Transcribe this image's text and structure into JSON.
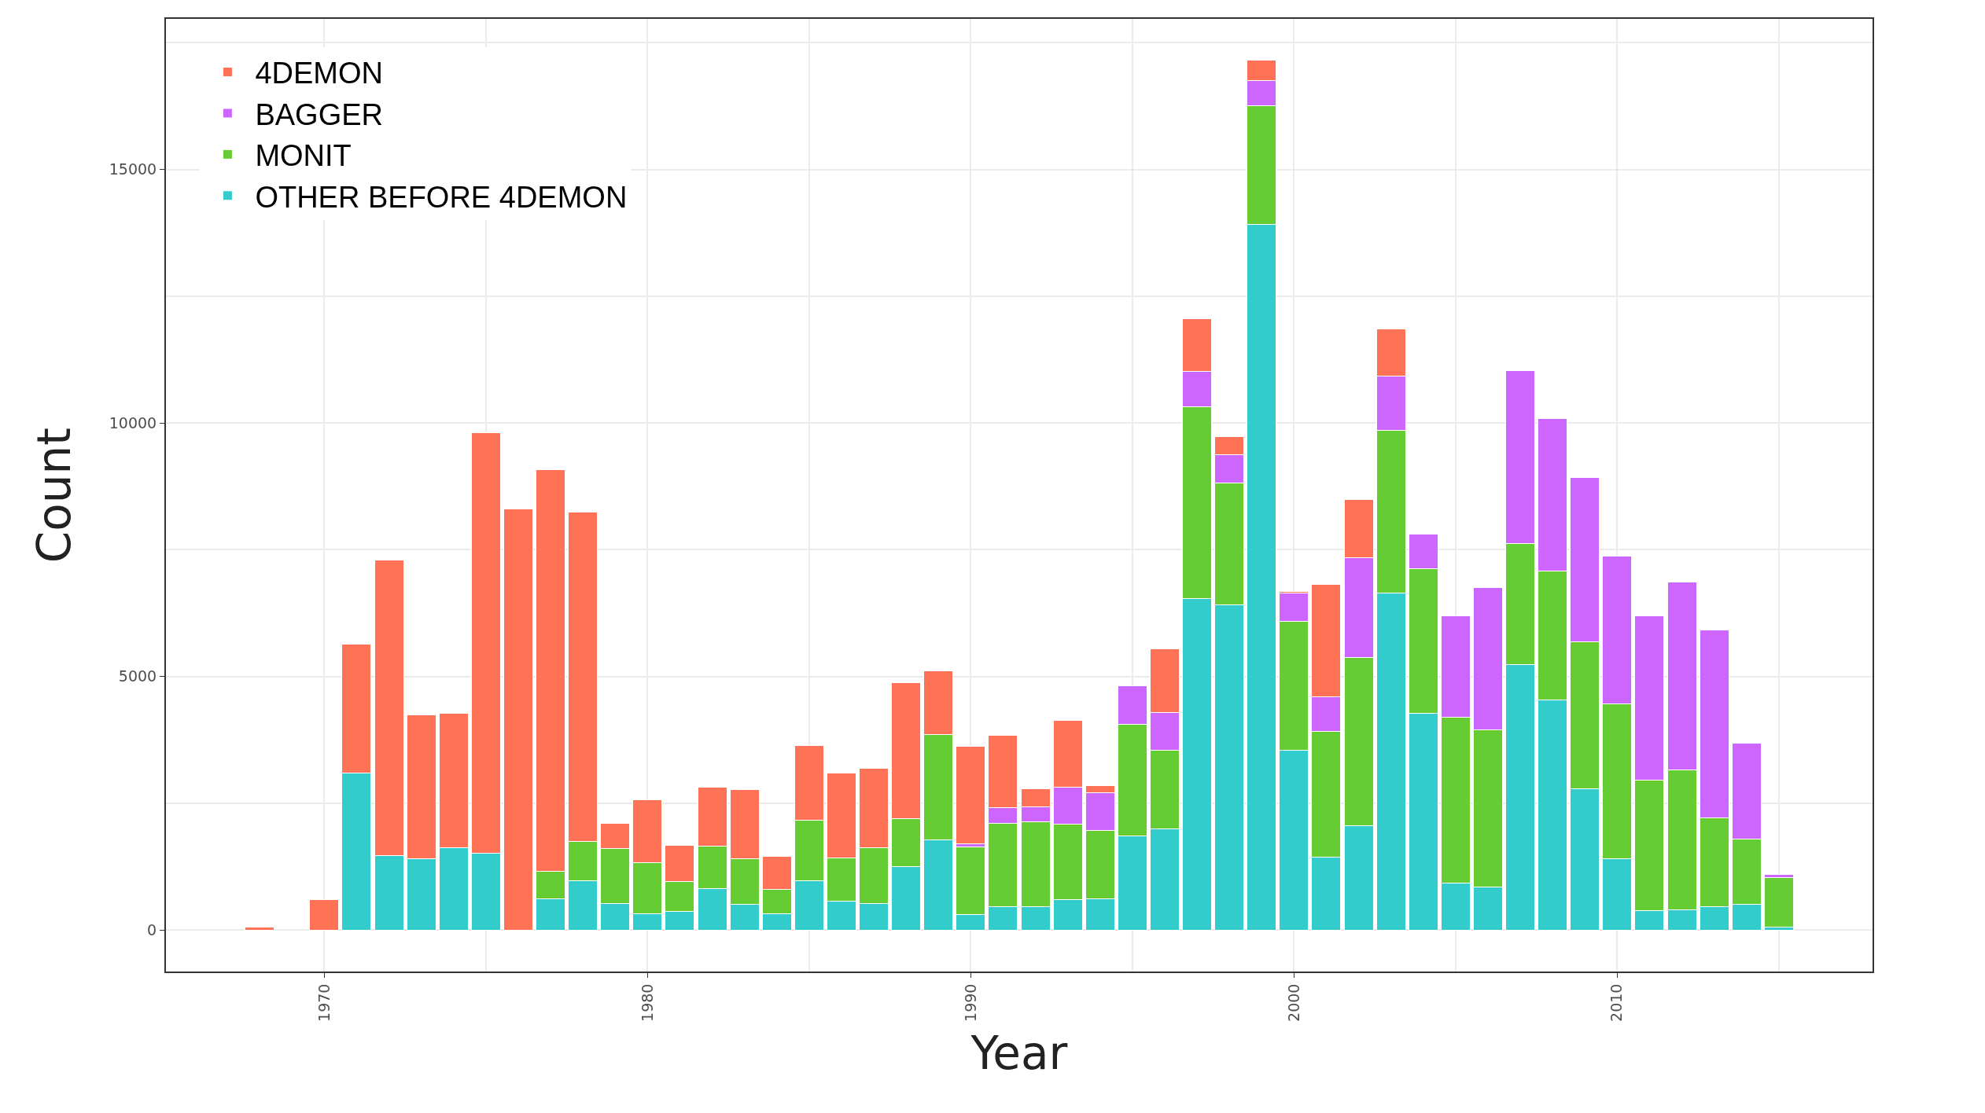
{
  "chart_data": {
    "type": "bar",
    "stacked": true,
    "xlabel": "Year",
    "ylabel": "Count",
    "x": [
      1968,
      1969,
      1970,
      1971,
      1972,
      1973,
      1974,
      1975,
      1976,
      1977,
      1978,
      1979,
      1980,
      1981,
      1982,
      1983,
      1984,
      1985,
      1986,
      1987,
      1988,
      1989,
      1990,
      1991,
      1992,
      1993,
      1994,
      1995,
      1996,
      1997,
      1998,
      1999,
      2000,
      2001,
      2002,
      2003,
      2004,
      2005,
      2006,
      2007,
      2008,
      2009,
      2010,
      2011,
      2012,
      2013,
      2014,
      2015
    ],
    "series": [
      {
        "name": "OTHER BEFORE 4DEMON",
        "color": "#33cccc",
        "values": [
          null,
          null,
          null,
          3090,
          1470,
          1400,
          1620,
          1520,
          null,
          620,
          970,
          520,
          320,
          370,
          820,
          500,
          320,
          970,
          570,
          520,
          1250,
          1780,
          300,
          460,
          460,
          600,
          620,
          1860,
          2000,
          6540,
          6420,
          13910,
          3550,
          1430,
          2050,
          6640,
          4270,
          920,
          840,
          5240,
          4540,
          2790,
          1410,
          380,
          400,
          455,
          505,
          60
        ]
      },
      {
        "name": "MONIT",
        "color": "#66cc33",
        "values": [
          null,
          null,
          null,
          null,
          null,
          null,
          null,
          null,
          null,
          530,
          780,
          1080,
          1000,
          580,
          830,
          900,
          480,
          1200,
          850,
          1100,
          940,
          2070,
          1330,
          1650,
          1670,
          1480,
          1350,
          2190,
          1540,
          3780,
          2390,
          2350,
          2540,
          2490,
          3330,
          3220,
          2860,
          3270,
          3110,
          2380,
          2540,
          2890,
          3050,
          2570,
          2760,
          1755,
          1280,
          970
        ]
      },
      {
        "name": "BAGGER",
        "color": "#cc66ff",
        "values": [
          null,
          null,
          null,
          null,
          null,
          null,
          null,
          null,
          null,
          null,
          null,
          null,
          null,
          null,
          null,
          null,
          null,
          null,
          null,
          null,
          null,
          null,
          75,
          300,
          300,
          730,
          730,
          760,
          750,
          690,
          570,
          490,
          560,
          680,
          1970,
          1060,
          670,
          2000,
          2810,
          3410,
          3000,
          3240,
          2920,
          3240,
          3700,
          3710,
          1895,
          60
        ]
      },
      {
        "name": "4DEMON",
        "color": "#ff7256",
        "values": [
          50,
          null,
          600,
          2550,
          5820,
          2840,
          2650,
          8290,
          8310,
          7930,
          6490,
          500,
          1250,
          720,
          1170,
          1370,
          650,
          1470,
          1670,
          1570,
          2680,
          1260,
          1920,
          1430,
          360,
          1320,
          140,
          null,
          1250,
          1050,
          350,
          410,
          30,
          2210,
          1140,
          940,
          null,
          null,
          null,
          null,
          null,
          null,
          null,
          null,
          null,
          null,
          null,
          null
        ]
      }
    ],
    "xlim": [
      1965.1,
      2017.9
    ],
    "xticks": [
      1970,
      1980,
      1990,
      2000,
      2010
    ],
    "ylim": [
      -820,
      17970
    ],
    "yticks": [
      0,
      5000,
      10000,
      15000
    ],
    "grid": true,
    "legend": "top left"
  }
}
